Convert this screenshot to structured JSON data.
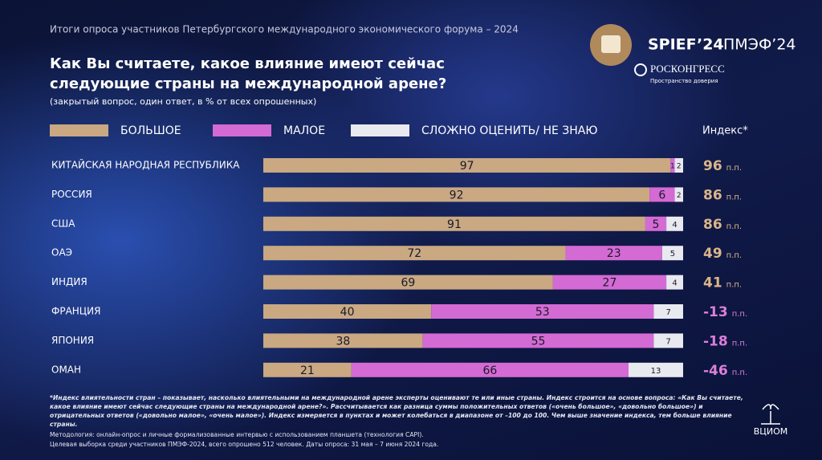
{
  "header": {
    "subtitle": "Итоги опроса участников Петербургского международного экономического форума – 2024",
    "title_lines": [
      "Как Вы считаете, какое влияние имеют сейчас",
      "следующие страны на международной арене?"
    ],
    "note": "(закрытый вопрос, один ответ, в % от всех опрошенных)"
  },
  "logo": {
    "spief": "SPIEF’24",
    "pmef": "ПМЭФ’24",
    "roscongress": "РОСКОНГРЕСС",
    "tagline": "Пространство доверия",
    "vciom": "ВЦИОМ"
  },
  "chart_data": {
    "type": "stacked-bar",
    "orientation": "horizontal",
    "categories": [
      "КИТАЙСКАЯ НАРОДНАЯ РЕСПУБЛИКА",
      "РОССИЯ",
      "США",
      "ОАЭ",
      "ИНДИЯ",
      "ФРАНЦИЯ",
      "ЯПОНИЯ",
      "ОМАН"
    ],
    "xlim": [
      0,
      100
    ],
    "series": [
      {
        "name": "БОЛЬШОЕ",
        "color": "#c9a882",
        "values": [
          97,
          92,
          91,
          72,
          69,
          40,
          38,
          21
        ]
      },
      {
        "name": "МАЛОЕ",
        "color": "#d46ad4",
        "values": [
          1,
          6,
          5,
          23,
          27,
          53,
          55,
          66
        ]
      },
      {
        "name": "СЛОЖНО ОЦЕНИТЬ/ НЕ ЗНАЮ",
        "color": "#e9e9f0",
        "values": [
          2,
          2,
          4,
          5,
          4,
          7,
          7,
          13
        ]
      }
    ]
  },
  "index": {
    "title": "Индекс*",
    "unit": "п.п.",
    "values": [
      96,
      86,
      86,
      49,
      41,
      -13,
      -18,
      -46
    ]
  },
  "footnotes": {
    "definition": "*Индекс влиятельности стран – показывает, насколько влиятельными на международной арене эксперты  оценивают те или иные страны. Индекс строится на основе вопроса: «Как Вы считаете, какое влияние имеют сейчас следующие страны на международной арене?». Рассчитывается как разница суммы положительных ответов («очень большое», «довольно большое») и отрицательных ответов («довольно малое», «очень малое»). Индекс измеряется в пунктах и может колебаться в диапазоне от –100 до 100. Чем выше значение индекса, тем больше влияние страны.",
    "method": "Методология: онлайн-опрос и личные формализованные интервью с использованием планшета (технология CAPI).",
    "sample": "Целевая выборка среди участников ПМЭФ-2024, всего опрошено 512 человек. Даты опроса: 31 мая – 7 июня 2024 года."
  }
}
